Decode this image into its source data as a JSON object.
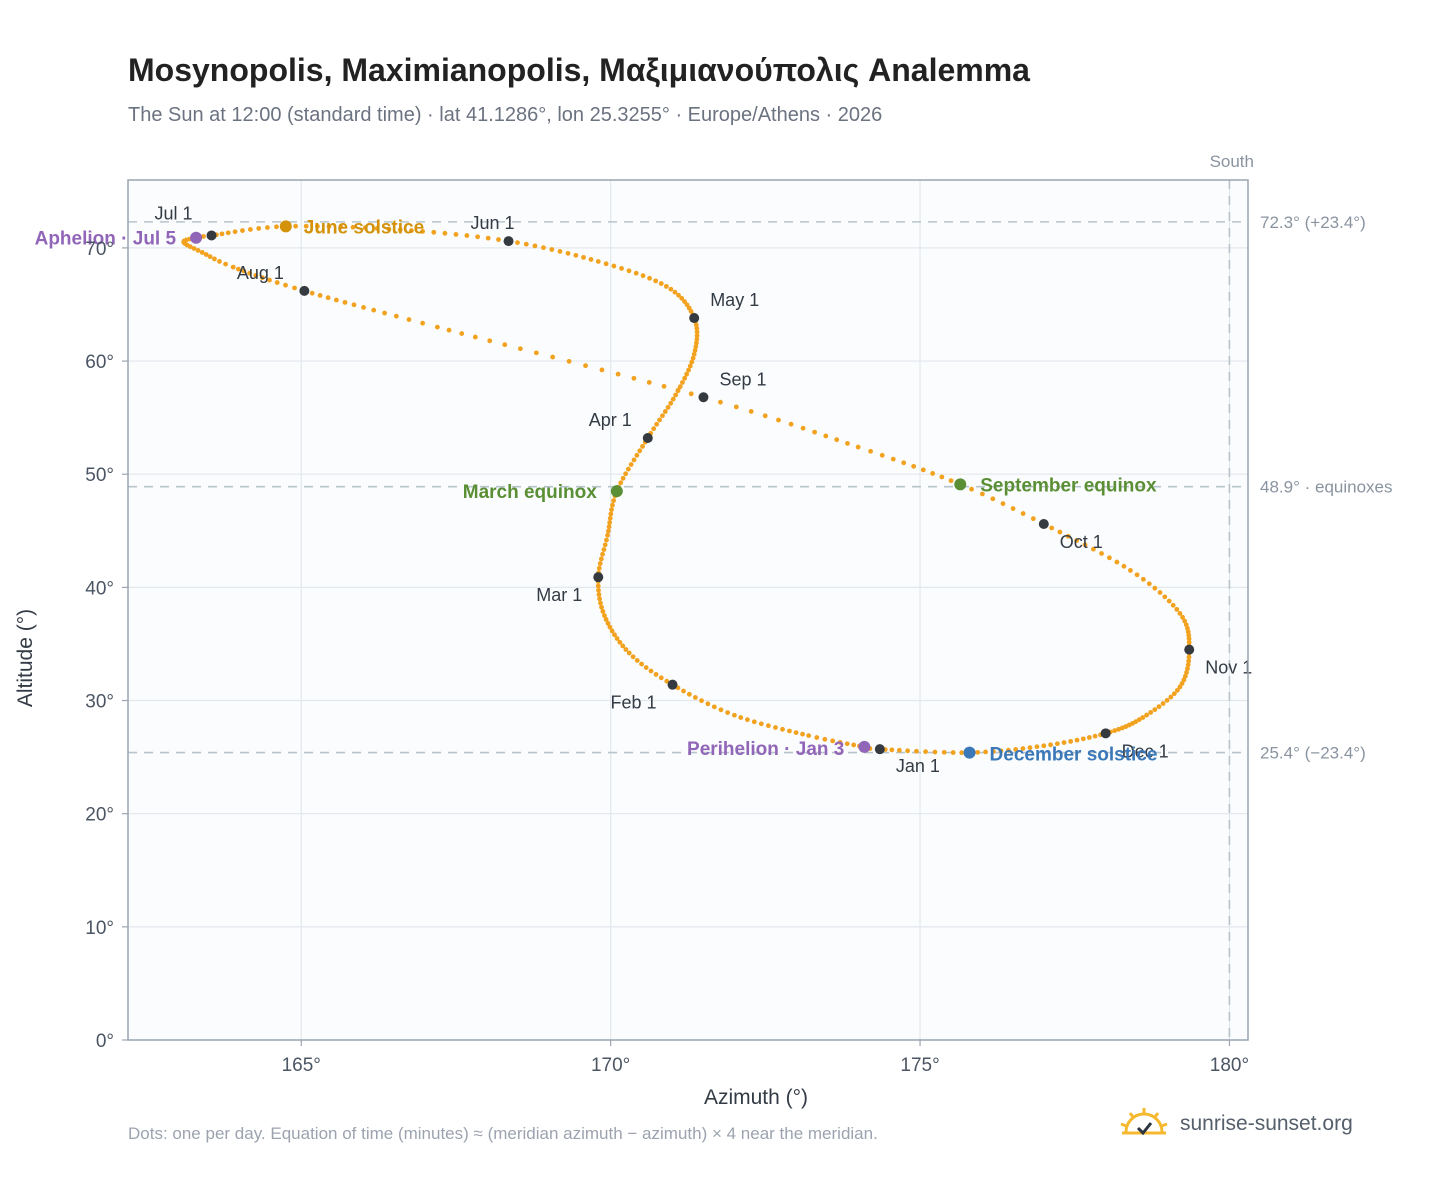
{
  "title": "Mosynopolis, Maximianopolis, Μαξιμιανούπολις Analemma",
  "subtitle": "The Sun at 12:00 (standard time) · lat 41.1286°, lon 25.3255° · Europe/Athens · 2026",
  "footnote": "Dots: one per day. Equation of time (minutes) ≈ (meridian azimuth − azimuth) × 4 near the meridian.",
  "brand": {
    "name": "sunrise-sunset.org",
    "icon": "sun-logo-icon"
  },
  "colors": {
    "analemma": "#f2a21e",
    "month_marker": "#343a40",
    "june_solstice": "#d4920a",
    "december_solstice": "#3b78b8",
    "equinox": "#5a8f35",
    "apsis": "#9166b8",
    "reference_line": "#b8c4cc",
    "plot_background": "#fafcfd"
  },
  "chart_data": {
    "type": "scatter",
    "title": "Mosynopolis, Maximianopolis, Μαξιμιανούπολις Analemma",
    "xlabel": "Azimuth (°)",
    "ylabel": "Altitude (°)",
    "xlim": [
      162.2,
      180.3
    ],
    "ylim": [
      0,
      76
    ],
    "grid": true,
    "x_ticks": [
      165,
      170,
      175,
      180
    ],
    "x_tick_labels": [
      "165°",
      "170°",
      "175°",
      "180°"
    ],
    "y_ticks": [
      0,
      10,
      20,
      30,
      40,
      50,
      60,
      70
    ],
    "y_tick_labels": [
      "0°",
      "10°",
      "20°",
      "30°",
      "40°",
      "50°",
      "60°",
      "70°"
    ],
    "meridian": {
      "azimuth": 180,
      "label": "South"
    },
    "reference_lines": [
      {
        "altitude": 72.3,
        "label": "72.3° (+23.4°)"
      },
      {
        "altitude": 48.9,
        "label": "48.9° · equinoxes"
      },
      {
        "altitude": 25.4,
        "label": "25.4° (−23.4°)"
      }
    ],
    "month_markers": [
      {
        "label": "Jan 1",
        "az": 174.35,
        "alt": 25.7
      },
      {
        "label": "Feb 1",
        "az": 171.0,
        "alt": 31.4
      },
      {
        "label": "Mar 1",
        "az": 169.8,
        "alt": 40.9
      },
      {
        "label": "Apr 1",
        "az": 170.6,
        "alt": 53.2
      },
      {
        "label": "May 1",
        "az": 171.35,
        "alt": 63.8
      },
      {
        "label": "Jun 1",
        "az": 168.35,
        "alt": 70.6
      },
      {
        "label": "Jul 1",
        "az": 163.55,
        "alt": 71.1
      },
      {
        "label": "Aug 1",
        "az": 165.05,
        "alt": 66.2
      },
      {
        "label": "Sep 1",
        "az": 171.5,
        "alt": 56.8
      },
      {
        "label": "Oct 1",
        "az": 177.0,
        "alt": 45.6
      },
      {
        "label": "Nov 1",
        "az": 179.35,
        "alt": 34.5
      },
      {
        "label": "Dec 1",
        "az": 178.0,
        "alt": 27.1
      }
    ],
    "events": [
      {
        "label": "June solstice",
        "az": 164.75,
        "alt": 71.9,
        "color": "#d4920a"
      },
      {
        "label": "December solstice",
        "az": 175.8,
        "alt": 25.4,
        "color": "#3b78b8"
      },
      {
        "label": "March equinox",
        "az": 170.1,
        "alt": 48.5,
        "color": "#5a8f35"
      },
      {
        "label": "September equinox",
        "az": 175.65,
        "alt": 49.1,
        "color": "#5a8f35"
      },
      {
        "label": "Aphelion · Jul 5",
        "az": 163.3,
        "alt": 70.9,
        "color": "#9166b8"
      },
      {
        "label": "Perihelion · Jan 3",
        "az": 174.1,
        "alt": 25.9,
        "color": "#9166b8"
      }
    ],
    "path_waypoints": [
      {
        "day": 0,
        "az": 174.35,
        "alt": 25.7
      },
      {
        "day": 2,
        "az": 174.1,
        "alt": 25.9
      },
      {
        "day": 10,
        "az": 173.2,
        "alt": 26.9
      },
      {
        "day": 21,
        "az": 172.0,
        "alt": 28.7
      },
      {
        "day": 31,
        "az": 171.0,
        "alt": 31.4
      },
      {
        "day": 40,
        "az": 170.3,
        "alt": 34.2
      },
      {
        "day": 50,
        "az": 169.9,
        "alt": 37.5
      },
      {
        "day": 59,
        "az": 169.8,
        "alt": 40.9
      },
      {
        "day": 68,
        "az": 169.95,
        "alt": 44.6
      },
      {
        "day": 78,
        "az": 170.1,
        "alt": 48.5
      },
      {
        "day": 90,
        "az": 170.6,
        "alt": 53.2
      },
      {
        "day": 100,
        "az": 171.05,
        "alt": 57.0
      },
      {
        "day": 110,
        "az": 171.35,
        "alt": 60.6
      },
      {
        "day": 120,
        "az": 171.35,
        "alt": 63.8
      },
      {
        "day": 130,
        "az": 170.9,
        "alt": 66.6
      },
      {
        "day": 140,
        "az": 169.8,
        "alt": 68.8
      },
      {
        "day": 151,
        "az": 168.35,
        "alt": 70.6
      },
      {
        "day": 161,
        "az": 166.6,
        "alt": 71.6
      },
      {
        "day": 171,
        "az": 164.75,
        "alt": 71.9
      },
      {
        "day": 181,
        "az": 163.55,
        "alt": 71.1
      },
      {
        "day": 185,
        "az": 163.3,
        "alt": 70.9
      },
      {
        "day": 190,
        "az": 163.1,
        "alt": 70.5
      },
      {
        "day": 196,
        "az": 163.4,
        "alt": 69.6
      },
      {
        "day": 202,
        "az": 163.9,
        "alt": 68.3
      },
      {
        "day": 212,
        "az": 165.05,
        "alt": 66.2
      },
      {
        "day": 225,
        "az": 167.2,
        "alt": 63.0
      },
      {
        "day": 243,
        "az": 171.5,
        "alt": 56.8
      },
      {
        "day": 255,
        "az": 174.0,
        "alt": 52.4
      },
      {
        "day": 265,
        "az": 175.65,
        "alt": 49.1
      },
      {
        "day": 273,
        "az": 177.0,
        "alt": 45.6
      },
      {
        "day": 284,
        "az": 178.4,
        "alt": 41.5
      },
      {
        "day": 294,
        "az": 179.2,
        "alt": 37.7
      },
      {
        "day": 304,
        "az": 179.35,
        "alt": 34.5
      },
      {
        "day": 314,
        "az": 179.2,
        "alt": 31.2
      },
      {
        "day": 324,
        "az": 178.6,
        "alt": 28.5
      },
      {
        "day": 334,
        "az": 178.0,
        "alt": 27.1
      },
      {
        "day": 344,
        "az": 177.0,
        "alt": 26.0
      },
      {
        "day": 354,
        "az": 175.8,
        "alt": 25.4
      },
      {
        "day": 365,
        "az": 174.35,
        "alt": 25.7
      }
    ]
  }
}
